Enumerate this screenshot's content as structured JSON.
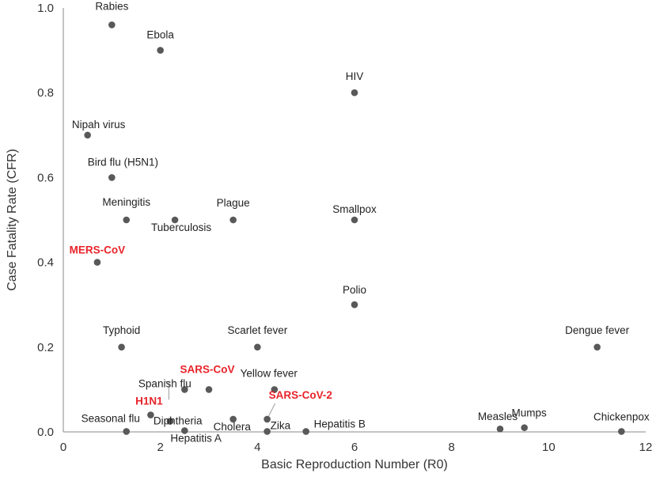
{
  "chart_data": {
    "type": "scatter",
    "title": "",
    "xlabel": "Basic Reproduction Number (R0)",
    "ylabel": "Case Fatality Rate (CFR)",
    "xlim": [
      0,
      12
    ],
    "ylim": [
      0,
      1.0
    ],
    "xticks": [
      "0",
      "2",
      "4",
      "6",
      "8",
      "10",
      "12"
    ],
    "yticks": [
      "0.0",
      "0.2",
      "0.4",
      "0.6",
      "0.8",
      "1.0"
    ],
    "grid": false,
    "marker_color": "#595959",
    "highlight_color": "#e8232a",
    "points": [
      {
        "label": "Rabies",
        "x": 1.0,
        "y": 0.96,
        "highlight": false
      },
      {
        "label": "Ebola",
        "x": 2.0,
        "y": 0.9,
        "highlight": false
      },
      {
        "label": "HIV",
        "x": 6.0,
        "y": 0.8,
        "highlight": false
      },
      {
        "label": "Nipah virus",
        "x": 0.5,
        "y": 0.7,
        "highlight": false
      },
      {
        "label": "Bird flu (H5N1)",
        "x": 1.0,
        "y": 0.6,
        "highlight": false
      },
      {
        "label": "Meningitis",
        "x": 1.3,
        "y": 0.5,
        "highlight": false
      },
      {
        "label": "Tuberculosis",
        "x": 2.3,
        "y": 0.5,
        "highlight": false
      },
      {
        "label": "Plague",
        "x": 3.5,
        "y": 0.5,
        "highlight": false
      },
      {
        "label": "Smallpox",
        "x": 6.0,
        "y": 0.5,
        "highlight": false
      },
      {
        "label": "MERS-CoV",
        "x": 0.7,
        "y": 0.4,
        "highlight": true
      },
      {
        "label": "Polio",
        "x": 6.0,
        "y": 0.3,
        "highlight": false
      },
      {
        "label": "Typhoid",
        "x": 1.2,
        "y": 0.2,
        "highlight": false
      },
      {
        "label": "Scarlet fever",
        "x": 4.0,
        "y": 0.2,
        "highlight": false
      },
      {
        "label": "Dengue fever",
        "x": 11.0,
        "y": 0.2,
        "highlight": false
      },
      {
        "label": "Spanish flu",
        "x": 2.5,
        "y": 0.1,
        "highlight": false
      },
      {
        "label": "SARS-CoV",
        "x": 3.0,
        "y": 0.1,
        "highlight": true
      },
      {
        "label": "Diphtheria",
        "x": 2.2,
        "y": 0.025,
        "highlight": false
      },
      {
        "label": "Yellow fever",
        "x": 4.35,
        "y": 0.1,
        "highlight": false
      },
      {
        "label": "H1N1",
        "x": 1.8,
        "y": 0.04,
        "highlight": true
      },
      {
        "label": "Seasonal flu",
        "x": 1.3,
        "y": 0.001,
        "highlight": false
      },
      {
        "label": "Hepatitis A",
        "x": 2.5,
        "y": 0.003,
        "highlight": false
      },
      {
        "label": "Cholera",
        "x": 3.5,
        "y": 0.03,
        "highlight": false
      },
      {
        "label": "SARS-CoV-2",
        "x": 4.2,
        "y": 0.03,
        "highlight": true
      },
      {
        "label": "Zika",
        "x": 4.2,
        "y": 0.001,
        "highlight": false
      },
      {
        "label": "Hepatitis B",
        "x": 5.0,
        "y": 0.001,
        "highlight": false
      },
      {
        "label": "Measles",
        "x": 9.0,
        "y": 0.007,
        "highlight": false
      },
      {
        "label": "Mumps",
        "x": 9.5,
        "y": 0.01,
        "highlight": false
      },
      {
        "label": "Chickenpox",
        "x": 11.5,
        "y": 0.001,
        "highlight": false
      }
    ]
  }
}
